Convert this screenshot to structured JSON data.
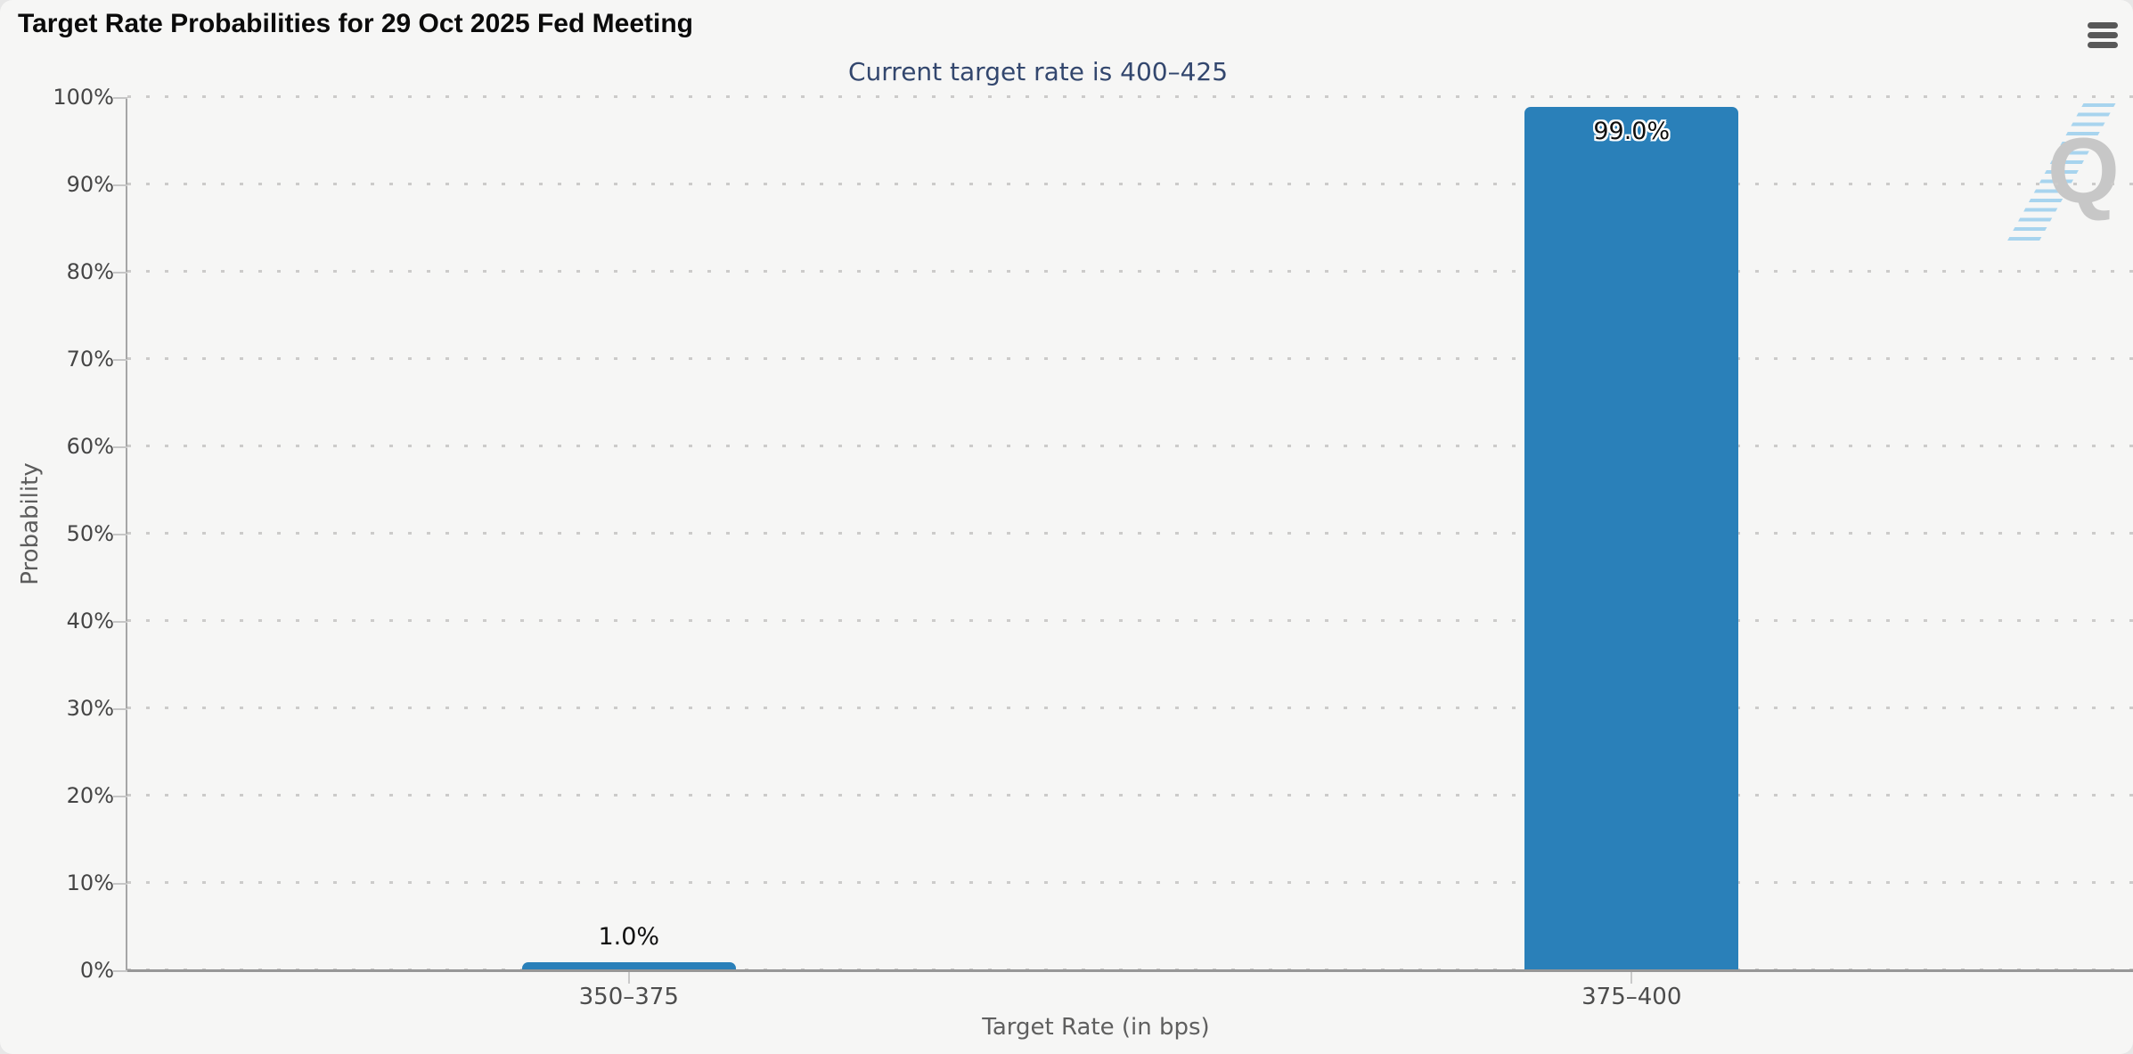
{
  "header": {
    "title": "Target Rate Probabilities for 29 Oct 2025 Fed Meeting",
    "subtitle": "Current target rate is 400–425",
    "menu_icon": "hamburger-menu-icon"
  },
  "watermark": {
    "letter": "Q"
  },
  "chart_data": {
    "type": "bar",
    "title": "Target Rate Probabilities for 29 Oct 2025 Fed Meeting",
    "subtitle": "Current target rate is 400–425",
    "categories": [
      "350–375",
      "375–400"
    ],
    "values": [
      1.0,
      99.0
    ],
    "value_labels": [
      "1.0%",
      "99.0%"
    ],
    "xlabel": "Target Rate (in bps)",
    "ylabel": "Probability",
    "ylim": [
      0,
      100
    ],
    "ytick_step": 10,
    "ytick_labels": [
      "0%",
      "10%",
      "20%",
      "30%",
      "40%",
      "50%",
      "60%",
      "70%",
      "80%",
      "90%",
      "100%"
    ],
    "grid": "horizontal dotted",
    "legend": "none",
    "bar_color": "#2a80b9"
  },
  "colors": {
    "bar": "#2a80b9",
    "subtitle_text": "#33476e",
    "background": "#f6f6f5",
    "axis_line": "#979797",
    "gridline": "#cccbca",
    "watermark_letter": "#c7c7c7",
    "watermark_dashes": "#8dc9ec"
  }
}
